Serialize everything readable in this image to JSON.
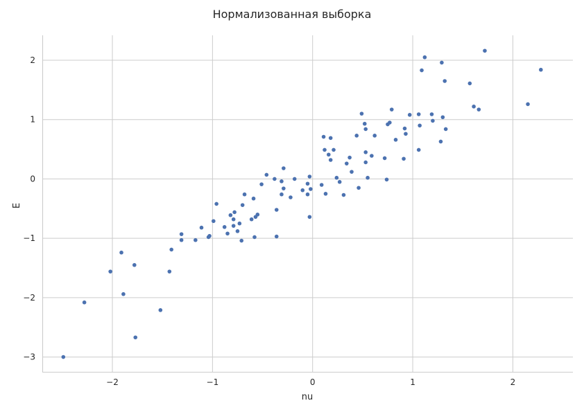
{
  "chart_data": {
    "type": "scatter",
    "title": "Нормализованная выборка",
    "xlabel": "nu",
    "ylabel": "E",
    "xlim": [
      -2.7,
      2.6
    ],
    "ylim": [
      -3.25,
      2.42
    ],
    "xticks": [
      -2,
      -1,
      0,
      1,
      2
    ],
    "yticks": [
      -3,
      -2,
      -1,
      0,
      1,
      2
    ],
    "xtick_labels": [
      "−2",
      "−1",
      "0",
      "1",
      "2"
    ],
    "ytick_labels": [
      "−3",
      "−2",
      "−1",
      "0",
      "1",
      "2"
    ],
    "grid": true,
    "legend": "none",
    "color": "#4c72b0",
    "points": [
      {
        "x": -2.49,
        "y": -3.0
      },
      {
        "x": -2.28,
        "y": -2.08
      },
      {
        "x": -2.02,
        "y": -1.56
      },
      {
        "x": -1.91,
        "y": -1.24
      },
      {
        "x": -1.89,
        "y": -1.94
      },
      {
        "x": -1.78,
        "y": -1.45
      },
      {
        "x": -1.77,
        "y": -2.67
      },
      {
        "x": -1.52,
        "y": -2.21
      },
      {
        "x": -1.43,
        "y": -1.56
      },
      {
        "x": -1.41,
        "y": -1.19
      },
      {
        "x": -1.31,
        "y": -0.93
      },
      {
        "x": -1.31,
        "y": -1.03
      },
      {
        "x": -1.17,
        "y": -1.03
      },
      {
        "x": -1.11,
        "y": -0.82
      },
      {
        "x": -1.04,
        "y": -0.98
      },
      {
        "x": -1.03,
        "y": -0.96
      },
      {
        "x": -0.99,
        "y": -0.71
      },
      {
        "x": -0.96,
        "y": -0.42
      },
      {
        "x": -0.88,
        "y": -0.81
      },
      {
        "x": -0.85,
        "y": -0.92
      },
      {
        "x": -0.82,
        "y": -0.61
      },
      {
        "x": -0.79,
        "y": -0.68
      },
      {
        "x": -0.79,
        "y": -0.79
      },
      {
        "x": -0.78,
        "y": -0.56
      },
      {
        "x": -0.75,
        "y": -0.88
      },
      {
        "x": -0.73,
        "y": -0.75
      },
      {
        "x": -0.71,
        "y": -1.04
      },
      {
        "x": -0.7,
        "y": -0.44
      },
      {
        "x": -0.68,
        "y": -0.26
      },
      {
        "x": -0.61,
        "y": -0.68
      },
      {
        "x": -0.59,
        "y": -0.33
      },
      {
        "x": -0.58,
        "y": -0.98
      },
      {
        "x": -0.57,
        "y": -0.64
      },
      {
        "x": -0.55,
        "y": -0.6
      },
      {
        "x": -0.51,
        "y": -0.09
      },
      {
        "x": -0.46,
        "y": 0.07
      },
      {
        "x": -0.38,
        "y": 0.0
      },
      {
        "x": -0.36,
        "y": -0.52
      },
      {
        "x": -0.36,
        "y": -0.97
      },
      {
        "x": -0.31,
        "y": -0.26
      },
      {
        "x": -0.31,
        "y": -0.04
      },
      {
        "x": -0.29,
        "y": 0.18
      },
      {
        "x": -0.29,
        "y": -0.16
      },
      {
        "x": -0.22,
        "y": -0.31
      },
      {
        "x": -0.18,
        "y": 0.0
      },
      {
        "x": -0.1,
        "y": -0.19
      },
      {
        "x": -0.05,
        "y": -0.26
      },
      {
        "x": -0.05,
        "y": -0.08
      },
      {
        "x": -0.03,
        "y": 0.04
      },
      {
        "x": -0.03,
        "y": -0.64
      },
      {
        "x": -0.02,
        "y": -0.17
      },
      {
        "x": 0.09,
        "y": -0.1
      },
      {
        "x": 0.11,
        "y": 0.71
      },
      {
        "x": 0.12,
        "y": 0.49
      },
      {
        "x": 0.13,
        "y": -0.25
      },
      {
        "x": 0.16,
        "y": 0.41
      },
      {
        "x": 0.18,
        "y": 0.32
      },
      {
        "x": 0.18,
        "y": 0.69
      },
      {
        "x": 0.21,
        "y": 0.49
      },
      {
        "x": 0.24,
        "y": 0.02
      },
      {
        "x": 0.27,
        "y": -0.05
      },
      {
        "x": 0.31,
        "y": -0.27
      },
      {
        "x": 0.34,
        "y": 0.26
      },
      {
        "x": 0.37,
        "y": 0.36
      },
      {
        "x": 0.39,
        "y": 0.12
      },
      {
        "x": 0.44,
        "y": 0.73
      },
      {
        "x": 0.46,
        "y": -0.15
      },
      {
        "x": 0.49,
        "y": 1.1
      },
      {
        "x": 0.52,
        "y": 0.93
      },
      {
        "x": 0.53,
        "y": 0.84
      },
      {
        "x": 0.53,
        "y": 0.45
      },
      {
        "x": 0.53,
        "y": 0.28
      },
      {
        "x": 0.55,
        "y": 0.02
      },
      {
        "x": 0.59,
        "y": 0.39
      },
      {
        "x": 0.62,
        "y": 0.73
      },
      {
        "x": 0.72,
        "y": 0.35
      },
      {
        "x": 0.74,
        "y": -0.01
      },
      {
        "x": 0.75,
        "y": 0.92
      },
      {
        "x": 0.77,
        "y": 0.95
      },
      {
        "x": 0.79,
        "y": 1.17
      },
      {
        "x": 0.83,
        "y": 0.66
      },
      {
        "x": 0.91,
        "y": 0.34
      },
      {
        "x": 0.92,
        "y": 0.85
      },
      {
        "x": 0.93,
        "y": 0.76
      },
      {
        "x": 0.97,
        "y": 1.08
      },
      {
        "x": 1.06,
        "y": 1.09
      },
      {
        "x": 1.06,
        "y": 0.49
      },
      {
        "x": 1.07,
        "y": 0.9
      },
      {
        "x": 1.09,
        "y": 1.83
      },
      {
        "x": 1.12,
        "y": 2.05
      },
      {
        "x": 1.19,
        "y": 1.09
      },
      {
        "x": 1.2,
        "y": 0.98
      },
      {
        "x": 1.28,
        "y": 0.63
      },
      {
        "x": 1.29,
        "y": 1.96
      },
      {
        "x": 1.3,
        "y": 1.04
      },
      {
        "x": 1.32,
        "y": 1.65
      },
      {
        "x": 1.33,
        "y": 0.84
      },
      {
        "x": 1.57,
        "y": 1.61
      },
      {
        "x": 1.61,
        "y": 1.22
      },
      {
        "x": 1.66,
        "y": 1.17
      },
      {
        "x": 1.72,
        "y": 2.16
      },
      {
        "x": 2.15,
        "y": 1.26
      },
      {
        "x": 2.28,
        "y": 1.84
      }
    ]
  }
}
